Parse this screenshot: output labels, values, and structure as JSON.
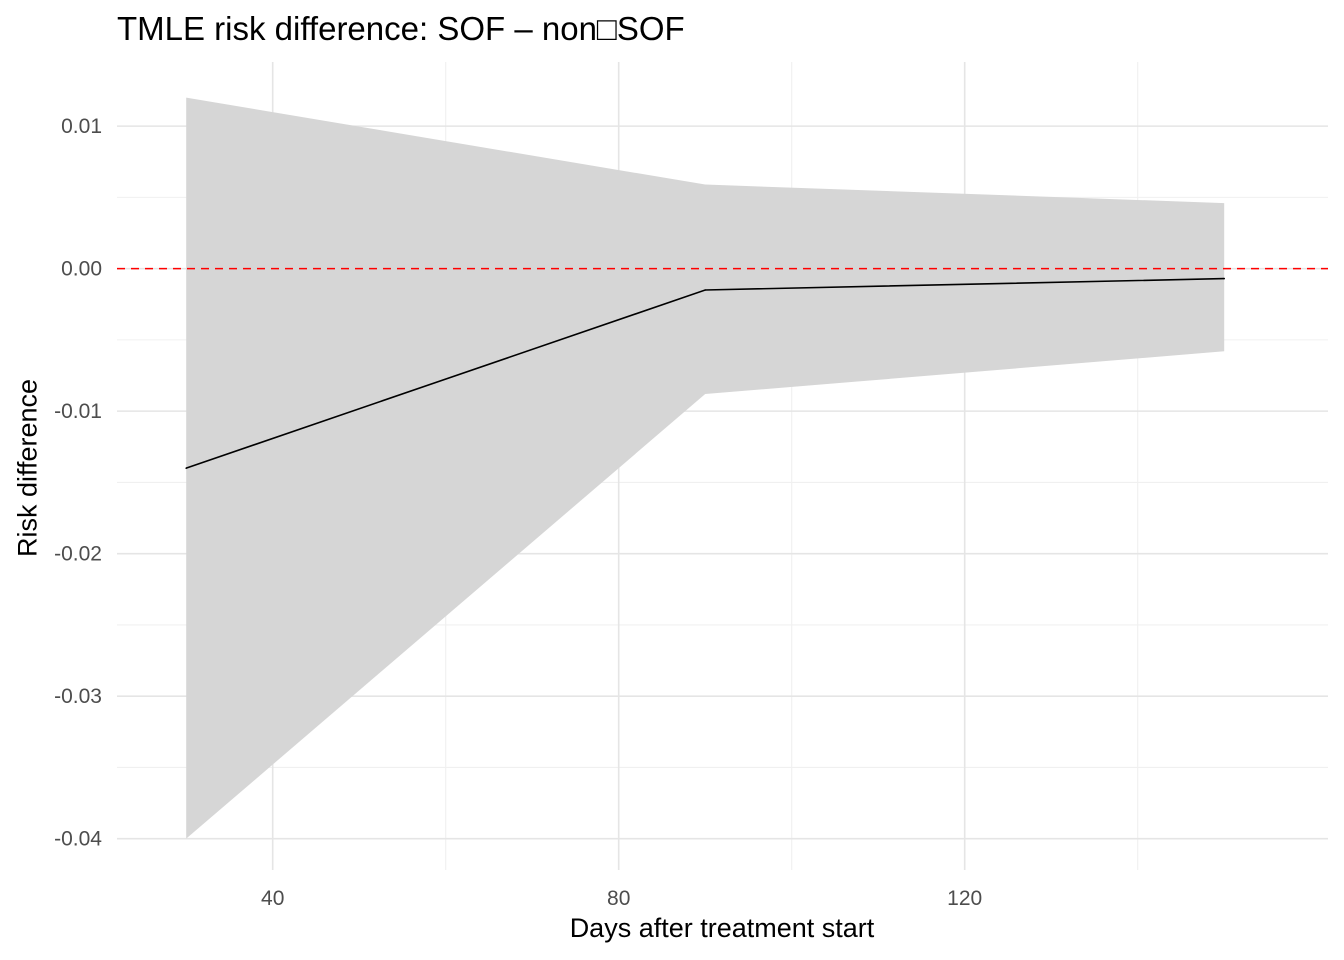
{
  "chart_data": {
    "type": "line",
    "title": "TMLE risk difference: SOF – non□SOF",
    "xlabel": "Days after treatment start",
    "ylabel": "Risk difference",
    "x": [
      30,
      90,
      150
    ],
    "series": [
      {
        "values": [
          -0.014,
          -0.0015,
          -0.0007
        ],
        "ci_lower": [
          -0.04,
          -0.0088,
          -0.0058
        ],
        "ci_upper": [
          0.012,
          0.0059,
          0.0046
        ]
      }
    ],
    "reference_line": {
      "y": 0,
      "style": "dashed",
      "color": "#ff0000"
    },
    "xlim": [
      22,
      162
    ],
    "ylim": [
      -0.0422,
      0.0145
    ],
    "x_ticks": [
      40,
      80,
      120
    ],
    "x_tick_labels": [
      "40",
      "80",
      "120"
    ],
    "y_ticks": [
      -0.04,
      -0.03,
      -0.02,
      -0.01,
      0.0,
      0.01
    ],
    "y_tick_labels": [
      "-0.04",
      "-0.03",
      "-0.02",
      "-0.01",
      "0.00",
      "0.01"
    ],
    "grid": true,
    "legend": "none",
    "colors": {
      "ribbon": "#d6d6d6",
      "line": "#000000",
      "grid_major": "#e5e5e5",
      "grid_minor": "#f0f0f0",
      "tick_text": "#4d4d4d"
    }
  }
}
